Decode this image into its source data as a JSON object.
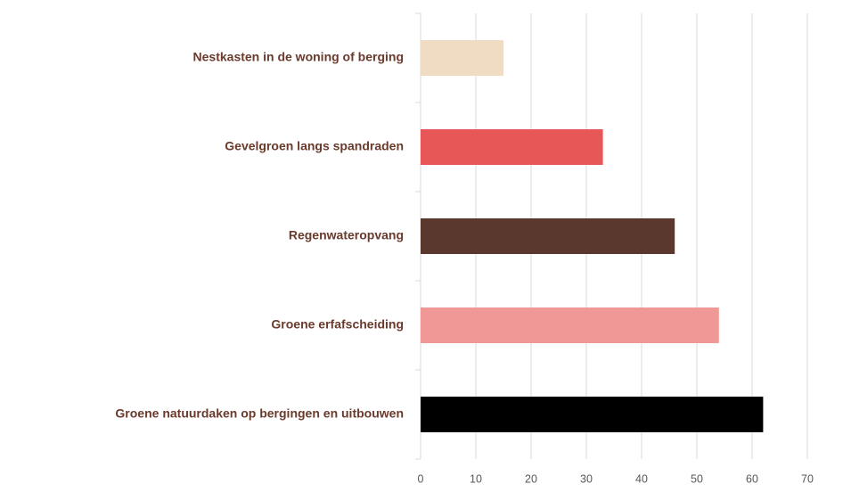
{
  "chart_data": {
    "type": "bar",
    "orientation": "horizontal",
    "categories": [
      "Nestkasten in de woning of berging",
      "Gevelgroen langs spandraden",
      "Regenwateropvang",
      "Groene erfafscheiding",
      "Groene natuurdaken op bergingen en uitbouwen"
    ],
    "values": [
      15,
      33,
      46,
      54,
      62
    ],
    "colors": [
      "#f0dcc2",
      "#e85757",
      "#5a382e",
      "#f09896",
      "#000000"
    ],
    "xlim": [
      0,
      70
    ],
    "xticks": [
      0,
      10,
      20,
      30,
      40,
      50,
      60,
      70
    ],
    "grid": true
  }
}
